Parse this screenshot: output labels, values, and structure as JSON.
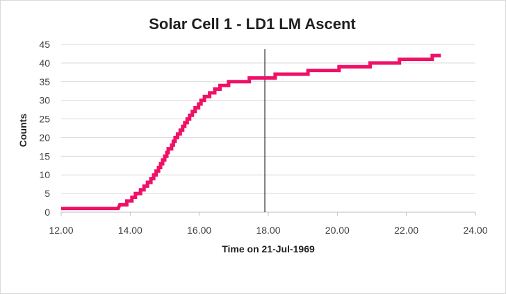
{
  "chart_data": {
    "type": "line",
    "title": "Solar Cell 1 - LD1 LM Ascent",
    "xlabel": "Time on 21-Jul-1969",
    "ylabel": "Counts",
    "xlim": [
      12.0,
      24.0
    ],
    "ylim": [
      0,
      45
    ],
    "x_ticks": [
      "12.00",
      "14.00",
      "16.00",
      "18.00",
      "20.00",
      "22.00",
      "24.00"
    ],
    "y_ticks": [
      "0",
      "5",
      "10",
      "15",
      "20",
      "25",
      "30",
      "35",
      "40",
      "45"
    ],
    "grid": "horizontal",
    "legend": "none",
    "series_color": "#ee1167",
    "marker_line_x": 17.9,
    "series": [
      {
        "values": [
          [
            12.0,
            1
          ],
          [
            13.65,
            1
          ],
          [
            13.7,
            2
          ],
          [
            13.9,
            2
          ],
          [
            13.9,
            3
          ],
          [
            14.05,
            3
          ],
          [
            14.05,
            4
          ],
          [
            14.15,
            4
          ],
          [
            14.15,
            5
          ],
          [
            14.3,
            5
          ],
          [
            14.3,
            6
          ],
          [
            14.4,
            6
          ],
          [
            14.4,
            7
          ],
          [
            14.5,
            7
          ],
          [
            14.5,
            8
          ],
          [
            14.6,
            8
          ],
          [
            14.6,
            9
          ],
          [
            14.68,
            9
          ],
          [
            14.68,
            10
          ],
          [
            14.75,
            10
          ],
          [
            14.75,
            11
          ],
          [
            14.82,
            11
          ],
          [
            14.82,
            12
          ],
          [
            14.88,
            12
          ],
          [
            14.88,
            13
          ],
          [
            14.94,
            13
          ],
          [
            14.94,
            14
          ],
          [
            15.0,
            14
          ],
          [
            15.0,
            15
          ],
          [
            15.06,
            15
          ],
          [
            15.06,
            16
          ],
          [
            15.1,
            16
          ],
          [
            15.1,
            17
          ],
          [
            15.2,
            17
          ],
          [
            15.2,
            18
          ],
          [
            15.25,
            18
          ],
          [
            15.25,
            19
          ],
          [
            15.3,
            19
          ],
          [
            15.3,
            20
          ],
          [
            15.37,
            20
          ],
          [
            15.37,
            21
          ],
          [
            15.45,
            21
          ],
          [
            15.45,
            22
          ],
          [
            15.52,
            22
          ],
          [
            15.52,
            23
          ],
          [
            15.58,
            23
          ],
          [
            15.58,
            24
          ],
          [
            15.65,
            24
          ],
          [
            15.65,
            25
          ],
          [
            15.72,
            25
          ],
          [
            15.72,
            26
          ],
          [
            15.8,
            26
          ],
          [
            15.8,
            27
          ],
          [
            15.88,
            27
          ],
          [
            15.88,
            28
          ],
          [
            15.98,
            28
          ],
          [
            15.98,
            29
          ],
          [
            16.05,
            29
          ],
          [
            16.05,
            30
          ],
          [
            16.15,
            30
          ],
          [
            16.15,
            31
          ],
          [
            16.3,
            31
          ],
          [
            16.3,
            32
          ],
          [
            16.45,
            32
          ],
          [
            16.45,
            33
          ],
          [
            16.6,
            33
          ],
          [
            16.6,
            34
          ],
          [
            16.85,
            34
          ],
          [
            16.85,
            35
          ],
          [
            17.45,
            35
          ],
          [
            17.45,
            36
          ],
          [
            17.9,
            36
          ],
          [
            18.2,
            36
          ],
          [
            18.2,
            37
          ],
          [
            19.15,
            37
          ],
          [
            19.15,
            38
          ],
          [
            20.05,
            38
          ],
          [
            20.05,
            39
          ],
          [
            20.95,
            39
          ],
          [
            20.95,
            40
          ],
          [
            21.8,
            40
          ],
          [
            21.8,
            41
          ],
          [
            22.75,
            41
          ],
          [
            22.75,
            42
          ],
          [
            23.0,
            42
          ]
        ]
      }
    ]
  }
}
